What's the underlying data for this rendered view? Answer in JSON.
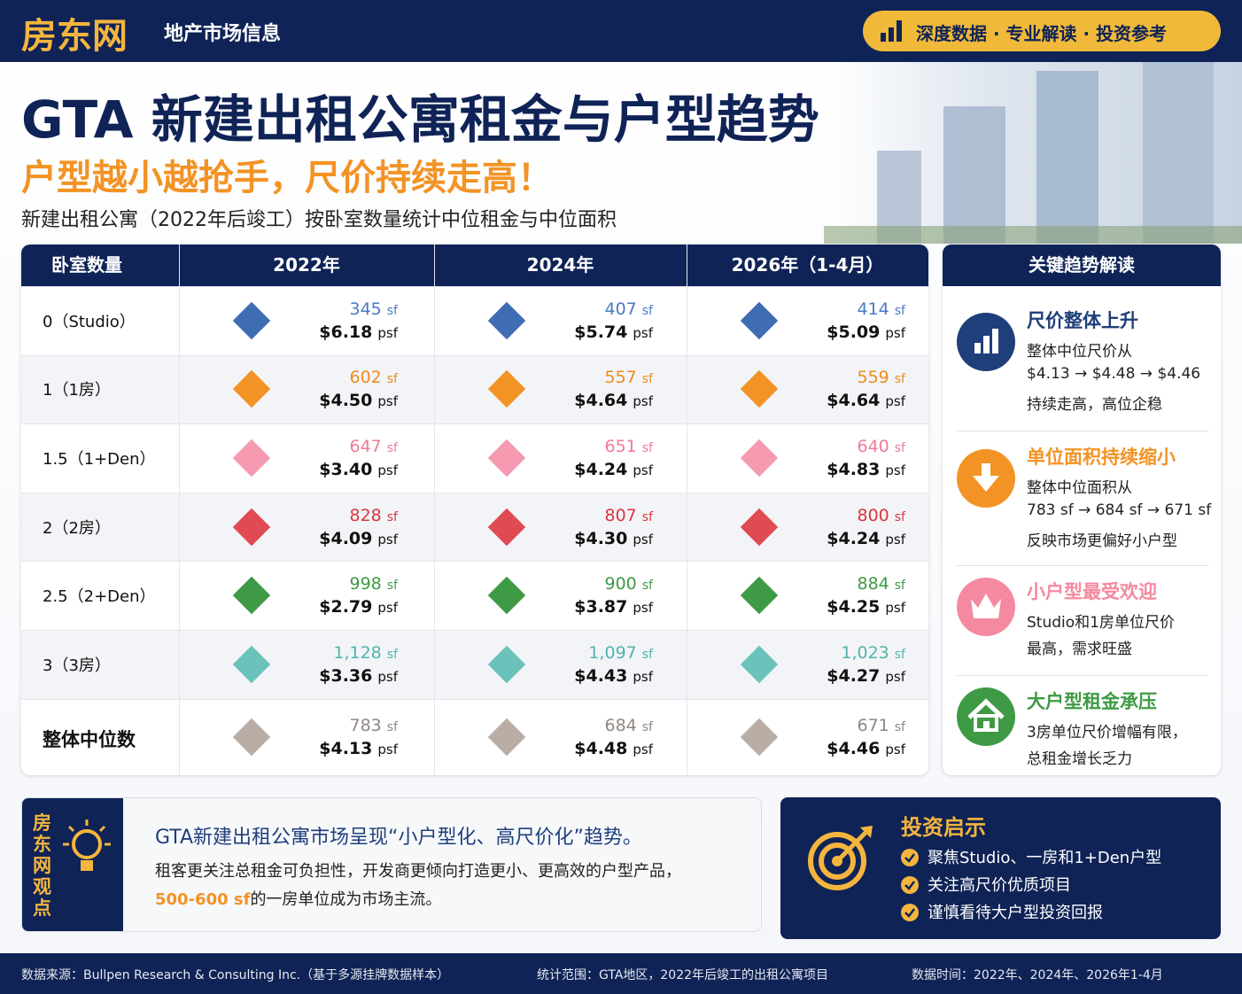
{
  "header": {
    "logo": "房东网",
    "tagline": "地产市场信息",
    "badge": "深度数据 · 专业解读 · 投资参考"
  },
  "title": "GTA 新建出租公寓租金与户型趋势",
  "subtitle": "户型越小越抢手，尺价持续走高！",
  "description": "新建出租公寓（2022年后竣工）按卧室数量统计中位租金与中位面积",
  "table": {
    "columns": [
      "卧室数量",
      "2022年",
      "2024年",
      "2026年（1-4月）"
    ],
    "area_unit": "sf",
    "psf_unit": "psf",
    "rows": [
      {
        "label": "0（Studio）",
        "color": "#3f6db3",
        "text_color": "#4a7ac6",
        "cells": [
          {
            "area": "345",
            "psf": "$6.18"
          },
          {
            "area": "407",
            "psf": "$5.74"
          },
          {
            "area": "414",
            "psf": "$5.09"
          }
        ]
      },
      {
        "label": "1（1房）",
        "color": "#f39325",
        "text_color": "#f08a1c",
        "cells": [
          {
            "area": "602",
            "psf": "$4.50"
          },
          {
            "area": "557",
            "psf": "$4.64"
          },
          {
            "area": "559",
            "psf": "$4.64"
          }
        ]
      },
      {
        "label": "1.5（1+Den）",
        "color": "#f59ab0",
        "text_color": "#f07b96",
        "cells": [
          {
            "area": "647",
            "psf": "$3.40"
          },
          {
            "area": "651",
            "psf": "$4.24"
          },
          {
            "area": "640",
            "psf": "$4.83"
          }
        ]
      },
      {
        "label": "2（2房）",
        "color": "#e04a52",
        "text_color": "#d9363e",
        "cells": [
          {
            "area": "828",
            "psf": "$4.09"
          },
          {
            "area": "807",
            "psf": "$4.30"
          },
          {
            "area": "800",
            "psf": "$4.24"
          }
        ]
      },
      {
        "label": "2.5（2+Den）",
        "color": "#3f9a45",
        "text_color": "#3f9a45",
        "cells": [
          {
            "area": "998",
            "psf": "$2.79"
          },
          {
            "area": "900",
            "psf": "$3.87"
          },
          {
            "area": "884",
            "psf": "$4.25"
          }
        ]
      },
      {
        "label": "3（3房）",
        "color": "#6ac2bb",
        "text_color": "#4fb5ad",
        "cells": [
          {
            "area": "1,128",
            "psf": "$3.36"
          },
          {
            "area": "1,097",
            "psf": "$4.43"
          },
          {
            "area": "1,023",
            "psf": "$4.27"
          }
        ]
      },
      {
        "label": "整体中位数",
        "color": "#b9ada6",
        "text_color": "#8f8782",
        "cells": [
          {
            "area": "783",
            "psf": "$4.13"
          },
          {
            "area": "684",
            "psf": "$4.48"
          },
          {
            "area": "671",
            "psf": "$4.46"
          }
        ]
      }
    ]
  },
  "sidebar": {
    "title": "关键趋势解读",
    "items": [
      {
        "title": "尺价整体上升",
        "color": "#1f3f7a",
        "icon": "bars",
        "lines": [
          "整体中位尺价从",
          "$4.13 → $4.48 → $4.46",
          "持续走高，高位企稳"
        ]
      },
      {
        "title": "单位面积持续缩小",
        "color": "#f39325",
        "icon": "down",
        "lines": [
          "整体中位面积从",
          "783 sf → 684 sf → 671 sf",
          "反映市场更偏好小户型"
        ]
      },
      {
        "title": "小户型最受欢迎",
        "color": "#f5899f",
        "icon": "crown",
        "lines": [
          "Studio和1房单位尺价",
          "最高，需求旺盛"
        ]
      },
      {
        "title": "大户型租金承压",
        "color": "#3f9a45",
        "icon": "house",
        "lines": [
          "3房单位尺价增幅有限，",
          "总租金增长乏力"
        ]
      }
    ]
  },
  "viewpoint": {
    "label": "房东网观点",
    "headline": "GTA新建出租公寓市场呈现“小户型化、高尺价化”趋势。",
    "body": "租客更关注总租金可负担性，开发商更倾向打造更小、更高效的户型产品，",
    "highlight": "500-600 sf",
    "body_end": "的一房单位成为市场主流。"
  },
  "insight": {
    "title": "投资启示",
    "items": [
      "聚焦Studio、一房和1+Den户型",
      "关注高尺价优质项目",
      "谨慎看待大户型投资回报"
    ]
  },
  "footer": [
    "数据来源：Bullpen Research & Consulting Inc.（基于多源挂牌数据样本）",
    "统计范围：GTA地区，2022年后竣工的出租公寓项目",
    "数据时间：2022年、2024年、2026年1-4月"
  ]
}
